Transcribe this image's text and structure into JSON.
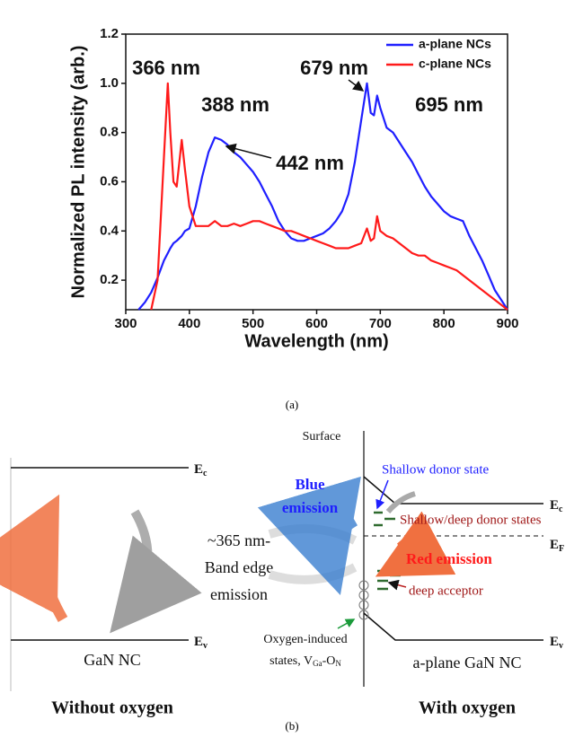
{
  "chart_data": {
    "type": "line",
    "xlabel": "Wavelength (nm)",
    "ylabel": "Normalized PL intensity (arb.)",
    "x": [
      320,
      330,
      340,
      350,
      360,
      366,
      370,
      375,
      380,
      388,
      393,
      400,
      410,
      420,
      430,
      440,
      450,
      460,
      470,
      480,
      490,
      500,
      510,
      520,
      530,
      540,
      550,
      560,
      570,
      580,
      590,
      600,
      610,
      620,
      630,
      640,
      650,
      660,
      670,
      679,
      685,
      690,
      695,
      700,
      710,
      720,
      730,
      740,
      750,
      760,
      770,
      780,
      790,
      800,
      810,
      820,
      830,
      840,
      850,
      860,
      870,
      880,
      890,
      900
    ],
    "series": [
      {
        "name": "a-plane NCs",
        "color": "#1f1fff",
        "values": [
          0.08,
          0.11,
          0.15,
          0.21,
          0.28,
          0.31,
          0.33,
          0.35,
          0.36,
          0.38,
          0.4,
          0.41,
          0.5,
          0.62,
          0.72,
          0.78,
          0.77,
          0.75,
          0.72,
          0.7,
          0.67,
          0.64,
          0.6,
          0.55,
          0.5,
          0.44,
          0.4,
          0.37,
          0.36,
          0.36,
          0.37,
          0.38,
          0.39,
          0.41,
          0.44,
          0.48,
          0.55,
          0.68,
          0.85,
          1.0,
          0.88,
          0.87,
          0.95,
          0.9,
          0.82,
          0.8,
          0.76,
          0.72,
          0.68,
          0.63,
          0.58,
          0.54,
          0.51,
          0.48,
          0.46,
          0.45,
          0.44,
          0.38,
          0.33,
          0.28,
          0.22,
          0.16,
          0.12,
          0.08
        ]
      },
      {
        "name": "c-plane NCs",
        "color": "#ff1a1a",
        "values": [
          null,
          null,
          0.08,
          0.2,
          0.7,
          1.0,
          0.8,
          0.6,
          0.58,
          0.77,
          0.65,
          0.5,
          0.42,
          0.42,
          0.42,
          0.44,
          0.42,
          0.42,
          0.43,
          0.42,
          0.43,
          0.44,
          0.44,
          0.43,
          0.42,
          0.41,
          0.4,
          0.4,
          0.39,
          0.38,
          0.37,
          0.36,
          0.35,
          0.34,
          0.33,
          0.33,
          0.33,
          0.34,
          0.35,
          0.41,
          0.36,
          0.37,
          0.46,
          0.4,
          0.38,
          0.37,
          0.35,
          0.33,
          0.31,
          0.3,
          0.3,
          0.28,
          0.27,
          0.26,
          0.25,
          0.24,
          0.22,
          0.2,
          0.18,
          0.16,
          0.14,
          0.12,
          0.1,
          0.08
        ]
      }
    ],
    "xlim": [
      300,
      900
    ],
    "xticks": [
      300,
      400,
      500,
      600,
      700,
      800,
      900
    ],
    "ylim": [
      0.08,
      1.2
    ],
    "yticks": [
      0.2,
      0.4,
      0.6,
      0.8,
      {
        "value": 1,
        "label": "1.0"
      },
      1.2
    ],
    "grid": false,
    "legend": "upper right",
    "annotations": [
      "366 nm",
      "388 nm",
      "442 nm",
      "679 nm",
      "695 nm"
    ]
  },
  "caption_a": "(a)",
  "diagram": {
    "surface": "Surface",
    "left": {
      "ec": {
        "base": "E",
        "sub": "c"
      },
      "ev": {
        "base": "E",
        "sub": "v"
      },
      "emission": [
        "~365 nm-",
        "Band edge",
        "emission"
      ],
      "material": "GaN NC",
      "title": "Without oxygen"
    },
    "right": {
      "ec": {
        "base": "E",
        "sub": "c"
      },
      "ef": {
        "base": "E",
        "sub": "F"
      },
      "ev": {
        "base": "E",
        "sub": "v"
      },
      "blue_emission": [
        "Blue",
        "emission"
      ],
      "shallow_donor": "Shallow donor state",
      "donor_states": "Shallow/deep donor states",
      "red_emission": "Red emission",
      "deep_acceptor": "deep acceptor",
      "oxygen_states": {
        "line1": "Oxygen-induced",
        "line2": [
          "states, V",
          "Ga",
          "-O",
          "N"
        ]
      },
      "material": "a-plane GaN NC",
      "title": "With oxygen"
    }
  },
  "caption_b": "(b)"
}
